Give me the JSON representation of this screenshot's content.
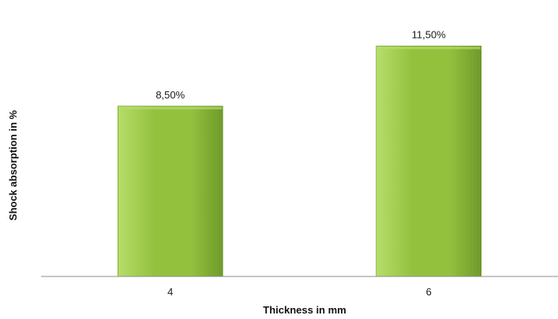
{
  "chart_data": {
    "type": "bar",
    "categories": [
      "4",
      "6"
    ],
    "values": [
      8.5,
      11.5
    ],
    "value_labels": [
      "8,50%",
      "11,50%"
    ],
    "title": "",
    "xlabel": "Thickness in mm",
    "ylabel": "Shock absorption in %",
    "ylim": [
      0,
      12.5
    ],
    "grid": false,
    "legend": "none",
    "colors": {
      "bar_light": "#b7dd6a",
      "bar_main": "#93c13e",
      "bar_dark": "#6f9a2a",
      "bar_edge": "#5e8a22",
      "axis": "#8c8c8c"
    }
  }
}
